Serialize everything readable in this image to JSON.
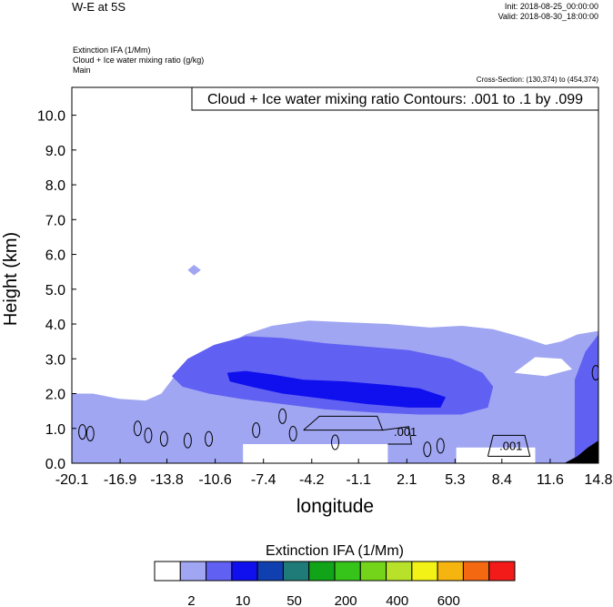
{
  "header": {
    "title": "W-E at 5S",
    "init": "Init: 2018-08-25_00:00:00",
    "valid": "Valid: 2018-08-30_18:00:00",
    "fields": [
      "Extinction IFA   (1/Mm)",
      "Cloud + Ice water mixing ratio   (g/kg)",
      "Main"
    ],
    "cross_section": "Cross-Section: (130,374) to (454,374)"
  },
  "chart_data": {
    "type": "heatmap",
    "title": "Cloud + Ice water mixing ratio Contours: .001 to .1 by .099",
    "xlabel": "longitude",
    "ylabel": "Height (km)",
    "xlim": [
      -20.1,
      14.8
    ],
    "ylim": [
      0.0,
      10.8
    ],
    "x_ticks": [
      "-20.1",
      "-16.9",
      "-13.8",
      "-10.6",
      "-7.4",
      "-4.2",
      "-1.1",
      "2.1",
      "5.3",
      "8.4",
      "11.6",
      "14.8"
    ],
    "y_ticks": [
      "0.0",
      "1.0",
      "2.0",
      "3.0",
      "4.0",
      "5.0",
      "6.0",
      "7.0",
      "8.0",
      "9.0",
      "10.0"
    ],
    "shading_field": "Extinction IFA (1/Mm)",
    "contour_labels": [
      {
        "text": ".001",
        "lon": 2.0,
        "height": 0.78
      },
      {
        "text": ".001",
        "lon": 9.0,
        "height": 0.38
      }
    ],
    "colorbar": {
      "title": "Extinction IFA  (1/Mm)",
      "colors": [
        "#ffffff",
        "#a0a6f2",
        "#6060f2",
        "#1010ee",
        "#1040b0",
        "#1e7b77",
        "#12a418",
        "#36c41a",
        "#74d41a",
        "#b8e22a",
        "#f2f216",
        "#f5b40e",
        "#f46812",
        "#f31a1a"
      ],
      "labels": [
        "2",
        "10",
        "50",
        "200",
        "400",
        "600"
      ]
    },
    "regions": [
      {
        "level": 1,
        "color": "#a0a6f2",
        "desc": "light cloud extinction layer from surface to ~4 km"
      },
      {
        "level": 2,
        "color": "#6060f2",
        "desc": "moderate extinction layer ~1.3 to 3.8 km"
      },
      {
        "level": 3,
        "color": "#1010ee",
        "desc": "core extinction maximum ~1.8 to 2.7 km"
      },
      {
        "level": 1,
        "color": "#a0a6f2",
        "desc": "isolated patch near 5.5 km"
      }
    ]
  }
}
